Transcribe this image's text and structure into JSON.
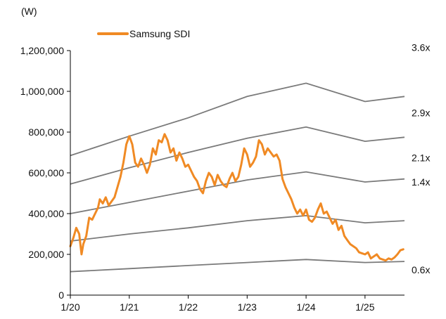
{
  "chart_data": {
    "type": "line",
    "unit_label": "(W)",
    "title": "",
    "xlabel": "",
    "ylabel": "",
    "x_tick_labels": [
      "1/20",
      "1/21",
      "1/22",
      "1/23",
      "1/24",
      "1/25"
    ],
    "x_ticks": [
      2020.0,
      2021.0,
      2022.0,
      2023.0,
      2024.0,
      2025.0
    ],
    "xlim": [
      2020.0,
      2025.67
    ],
    "ylim": [
      0,
      1200000
    ],
    "y_ticks": [
      0,
      200000,
      400000,
      600000,
      800000,
      1000000,
      1200000
    ],
    "y_tick_labels": [
      "0",
      "200,000",
      "400,000",
      "600,000",
      "800,000",
      "1,000,000",
      "1,200,000"
    ],
    "grid": false,
    "legend_position": "top-left",
    "colors": {
      "price": "#F08A24",
      "band": "#7a7a7a",
      "axis": "#000000"
    },
    "series": [
      {
        "name": "Samsung SDI",
        "points": [
          [
            2020.0,
            240000
          ],
          [
            2020.05,
            280000
          ],
          [
            2020.1,
            330000
          ],
          [
            2020.15,
            300000
          ],
          [
            2020.19,
            200000
          ],
          [
            2020.22,
            250000
          ],
          [
            2020.27,
            290000
          ],
          [
            2020.32,
            380000
          ],
          [
            2020.37,
            370000
          ],
          [
            2020.42,
            400000
          ],
          [
            2020.47,
            430000
          ],
          [
            2020.5,
            470000
          ],
          [
            2020.55,
            450000
          ],
          [
            2020.6,
            480000
          ],
          [
            2020.65,
            440000
          ],
          [
            2020.7,
            460000
          ],
          [
            2020.75,
            480000
          ],
          [
            2020.8,
            530000
          ],
          [
            2020.85,
            580000
          ],
          [
            2020.9,
            650000
          ],
          [
            2020.95,
            740000
          ],
          [
            2021.0,
            780000
          ],
          [
            2021.05,
            740000
          ],
          [
            2021.1,
            650000
          ],
          [
            2021.15,
            630000
          ],
          [
            2021.2,
            670000
          ],
          [
            2021.25,
            640000
          ],
          [
            2021.3,
            600000
          ],
          [
            2021.35,
            640000
          ],
          [
            2021.4,
            720000
          ],
          [
            2021.45,
            690000
          ],
          [
            2021.5,
            760000
          ],
          [
            2021.55,
            750000
          ],
          [
            2021.6,
            790000
          ],
          [
            2021.65,
            760000
          ],
          [
            2021.7,
            700000
          ],
          [
            2021.75,
            720000
          ],
          [
            2021.8,
            660000
          ],
          [
            2021.85,
            700000
          ],
          [
            2021.9,
            670000
          ],
          [
            2021.95,
            630000
          ],
          [
            2022.0,
            640000
          ],
          [
            2022.05,
            610000
          ],
          [
            2022.1,
            580000
          ],
          [
            2022.15,
            560000
          ],
          [
            2022.2,
            520000
          ],
          [
            2022.25,
            500000
          ],
          [
            2022.3,
            560000
          ],
          [
            2022.35,
            600000
          ],
          [
            2022.4,
            580000
          ],
          [
            2022.45,
            540000
          ],
          [
            2022.5,
            590000
          ],
          [
            2022.55,
            560000
          ],
          [
            2022.6,
            540000
          ],
          [
            2022.65,
            530000
          ],
          [
            2022.7,
            570000
          ],
          [
            2022.75,
            600000
          ],
          [
            2022.8,
            560000
          ],
          [
            2022.85,
            580000
          ],
          [
            2022.9,
            640000
          ],
          [
            2022.95,
            720000
          ],
          [
            2023.0,
            690000
          ],
          [
            2023.05,
            630000
          ],
          [
            2023.1,
            650000
          ],
          [
            2023.15,
            680000
          ],
          [
            2023.2,
            760000
          ],
          [
            2023.25,
            740000
          ],
          [
            2023.3,
            690000
          ],
          [
            2023.35,
            720000
          ],
          [
            2023.4,
            700000
          ],
          [
            2023.45,
            680000
          ],
          [
            2023.5,
            690000
          ],
          [
            2023.55,
            660000
          ],
          [
            2023.6,
            570000
          ],
          [
            2023.65,
            530000
          ],
          [
            2023.7,
            500000
          ],
          [
            2023.75,
            470000
          ],
          [
            2023.8,
            430000
          ],
          [
            2023.85,
            400000
          ],
          [
            2023.9,
            420000
          ],
          [
            2023.95,
            390000
          ],
          [
            2024.0,
            420000
          ],
          [
            2024.05,
            370000
          ],
          [
            2024.1,
            360000
          ],
          [
            2024.15,
            380000
          ],
          [
            2024.2,
            420000
          ],
          [
            2024.25,
            450000
          ],
          [
            2024.3,
            400000
          ],
          [
            2024.35,
            410000
          ],
          [
            2024.4,
            380000
          ],
          [
            2024.45,
            350000
          ],
          [
            2024.5,
            370000
          ],
          [
            2024.55,
            320000
          ],
          [
            2024.6,
            340000
          ],
          [
            2024.65,
            290000
          ],
          [
            2024.7,
            270000
          ],
          [
            2024.75,
            250000
          ],
          [
            2024.8,
            240000
          ],
          [
            2024.85,
            230000
          ],
          [
            2024.9,
            210000
          ],
          [
            2024.95,
            205000
          ],
          [
            2025.0,
            200000
          ],
          [
            2025.05,
            210000
          ],
          [
            2025.1,
            180000
          ],
          [
            2025.15,
            190000
          ],
          [
            2025.2,
            200000
          ],
          [
            2025.25,
            180000
          ],
          [
            2025.3,
            175000
          ],
          [
            2025.35,
            170000
          ],
          [
            2025.4,
            180000
          ],
          [
            2025.45,
            175000
          ],
          [
            2025.5,
            185000
          ],
          [
            2025.55,
            200000
          ],
          [
            2025.6,
            220000
          ],
          [
            2025.65,
            225000
          ]
        ]
      }
    ],
    "bands": [
      {
        "label": "3.6x",
        "points": [
          [
            2020.0,
            685000
          ],
          [
            2021.0,
            780000
          ],
          [
            2022.0,
            870000
          ],
          [
            2023.0,
            975000
          ],
          [
            2024.0,
            1040000
          ],
          [
            2025.0,
            950000
          ],
          [
            2025.67,
            975000
          ]
        ]
      },
      {
        "label": "2.9x",
        "points": [
          [
            2020.0,
            545000
          ],
          [
            2021.0,
            625000
          ],
          [
            2022.0,
            700000
          ],
          [
            2023.0,
            770000
          ],
          [
            2024.0,
            825000
          ],
          [
            2025.0,
            755000
          ],
          [
            2025.67,
            775000
          ]
        ]
      },
      {
        "label": "2.1x",
        "points": [
          [
            2020.0,
            400000
          ],
          [
            2021.0,
            455000
          ],
          [
            2022.0,
            510000
          ],
          [
            2023.0,
            565000
          ],
          [
            2024.0,
            605000
          ],
          [
            2025.0,
            555000
          ],
          [
            2025.67,
            570000
          ]
        ]
      },
      {
        "label": "1.4x",
        "points": [
          [
            2020.0,
            265000
          ],
          [
            2021.0,
            300000
          ],
          [
            2022.0,
            330000
          ],
          [
            2023.0,
            365000
          ],
          [
            2024.0,
            390000
          ],
          [
            2025.0,
            355000
          ],
          [
            2025.67,
            365000
          ]
        ]
      },
      {
        "label": "0.6x",
        "points": [
          [
            2020.0,
            115000
          ],
          [
            2021.0,
            130000
          ],
          [
            2022.0,
            145000
          ],
          [
            2023.0,
            160000
          ],
          [
            2024.0,
            175000
          ],
          [
            2025.0,
            160000
          ],
          [
            2025.67,
            165000
          ]
        ]
      }
    ]
  }
}
